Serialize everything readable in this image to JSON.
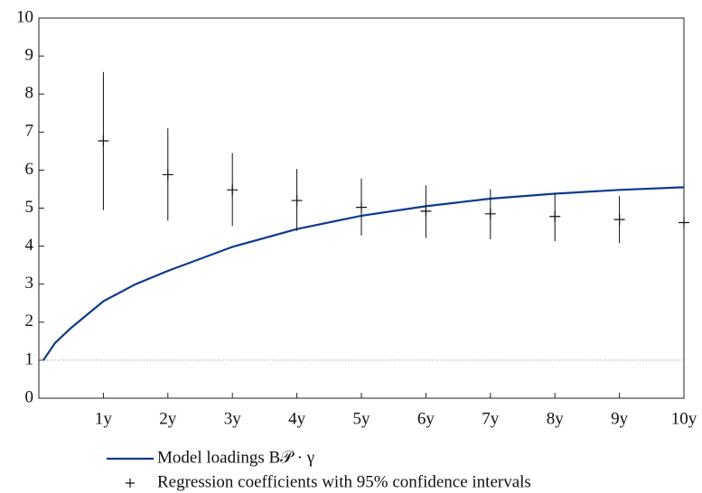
{
  "chart_data": {
    "type": "line",
    "xlim": [
      0,
      10
    ],
    "ylim": [
      0,
      10
    ],
    "xticks": [
      {
        "value": 1,
        "label": "1y"
      },
      {
        "value": 2,
        "label": "2y"
      },
      {
        "value": 3,
        "label": "3y"
      },
      {
        "value": 4,
        "label": "4y"
      },
      {
        "value": 5,
        "label": "5y"
      },
      {
        "value": 6,
        "label": "6y"
      },
      {
        "value": 7,
        "label": "7y"
      },
      {
        "value": 8,
        "label": "8y"
      },
      {
        "value": 9,
        "label": "9y"
      },
      {
        "value": 10,
        "label": "10y"
      }
    ],
    "yticks": [
      0,
      1,
      2,
      3,
      4,
      5,
      6,
      7,
      8,
      9,
      10
    ],
    "reference_line": 1,
    "series": [
      {
        "name": "Model loadings B𝒫 · γ",
        "color": "#0b3a8f",
        "type": "line",
        "x": [
          0.07,
          0.25,
          0.5,
          0.75,
          1,
          1.5,
          2,
          3,
          4,
          5,
          6,
          7,
          8,
          9,
          10
        ],
        "values": [
          1.0,
          1.45,
          1.85,
          2.2,
          2.55,
          3.0,
          3.35,
          3.98,
          4.45,
          4.8,
          5.05,
          5.25,
          5.38,
          5.48,
          5.55
        ]
      },
      {
        "name": "Regression coefficients with 95% confidence intervals",
        "color": "#111111",
        "type": "errorbar",
        "x": [
          1,
          2,
          3,
          4,
          5,
          6,
          7,
          8,
          9,
          10
        ],
        "values": [
          6.77,
          5.88,
          5.48,
          5.2,
          5.02,
          4.92,
          4.85,
          4.78,
          4.7,
          4.62
        ],
        "lower": [
          4.95,
          4.67,
          4.53,
          4.4,
          4.28,
          4.22,
          4.18,
          4.13,
          4.08,
          null
        ],
        "upper": [
          8.58,
          7.1,
          6.45,
          6.03,
          5.78,
          5.6,
          5.5,
          5.4,
          5.32,
          null
        ]
      }
    ]
  }
}
